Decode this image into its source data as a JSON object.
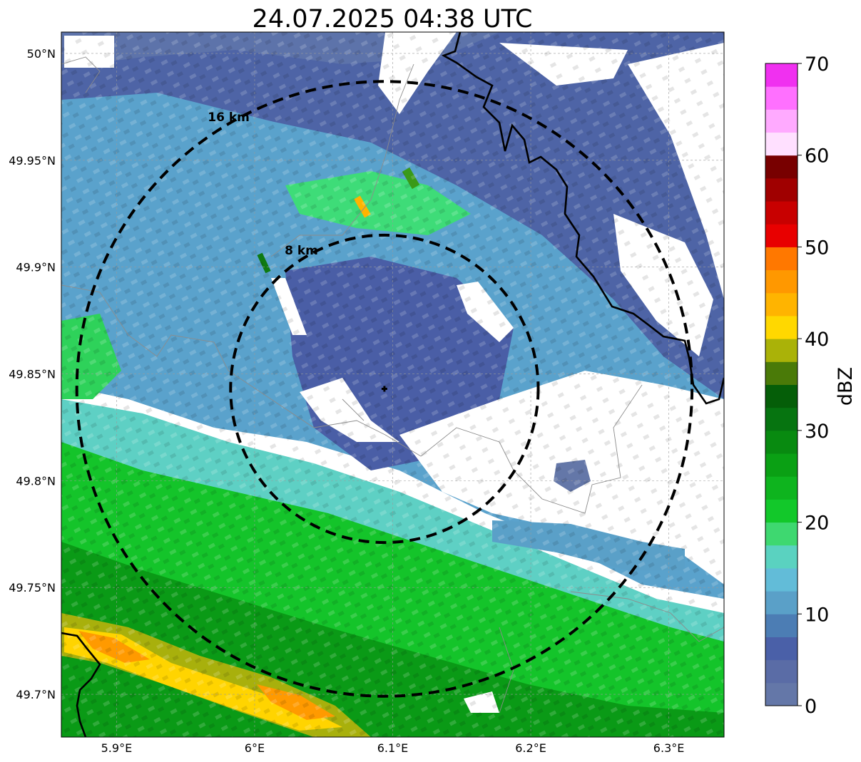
{
  "title": "24.07.2025 04:38 UTC",
  "map": {
    "lon_range": [
      5.86,
      6.34
    ],
    "lat_range": [
      49.68,
      50.01
    ],
    "x_ticks": [
      {
        "value": 5.9,
        "label": "5.9°E"
      },
      {
        "value": 6.0,
        "label": "6°E"
      },
      {
        "value": 6.1,
        "label": "6.1°E"
      },
      {
        "value": 6.2,
        "label": "6.2°E"
      },
      {
        "value": 6.3,
        "label": "6.3°E"
      }
    ],
    "y_ticks": [
      {
        "value": 50.0,
        "label": "50°N"
      },
      {
        "value": 49.95,
        "label": "49.95°N"
      },
      {
        "value": 49.9,
        "label": "49.9°N"
      },
      {
        "value": 49.85,
        "label": "49.85°N"
      },
      {
        "value": 49.8,
        "label": "49.8°N"
      },
      {
        "value": 49.75,
        "label": "49.75°N"
      },
      {
        "value": 49.7,
        "label": "49.7°N"
      }
    ],
    "gridlines": true,
    "radar_center": {
      "lon": 6.094,
      "lat": 49.843
    },
    "range_rings": [
      {
        "radius_km": 8,
        "label": "8 km"
      },
      {
        "radius_km": 16,
        "label": "16 km"
      }
    ]
  },
  "colorbar": {
    "label": "dBZ",
    "min": 0,
    "max": 70,
    "ticks": [
      0,
      10,
      20,
      30,
      40,
      50,
      60,
      70
    ],
    "colors": [
      "#6477a8",
      "#5a6ca6",
      "#4a60a8",
      "#4c7db4",
      "#5aa0c8",
      "#62bcd8",
      "#5ad2c0",
      "#3ed870",
      "#12c82a",
      "#0eb41e",
      "#0aa014",
      "#088a10",
      "#067410",
      "#055e08",
      "#4a7a08",
      "#aab208",
      "#ffd800",
      "#ffb400",
      "#ff9800",
      "#ff7800",
      "#e80000",
      "#c80000",
      "#a00000",
      "#780000",
      "#ffe0ff",
      "#ffaaff",
      "#ff70ff",
      "#f030f0"
    ]
  },
  "chart_data": {
    "type": "heatmap",
    "title": "24.07.2025 04:38 UTC",
    "xlabel": "",
    "ylabel": "",
    "xlim": [
      5.86,
      6.34
    ],
    "ylim": [
      49.68,
      50.01
    ],
    "colorbar_label": "dBZ",
    "colorbar_range": [
      0,
      70
    ],
    "radar_center": [
      6.094,
      49.843
    ],
    "reflectivity_zones": [
      {
        "region": "north edge",
        "dbz": 5
      },
      {
        "region": "central echo around radar",
        "dbz": 6
      },
      {
        "region": "mid band",
        "dbz": 15
      },
      {
        "region": "south band",
        "dbz": 25
      },
      {
        "region": "far south",
        "dbz": 30
      },
      {
        "region": "southwest core",
        "dbz": 42
      }
    ]
  }
}
